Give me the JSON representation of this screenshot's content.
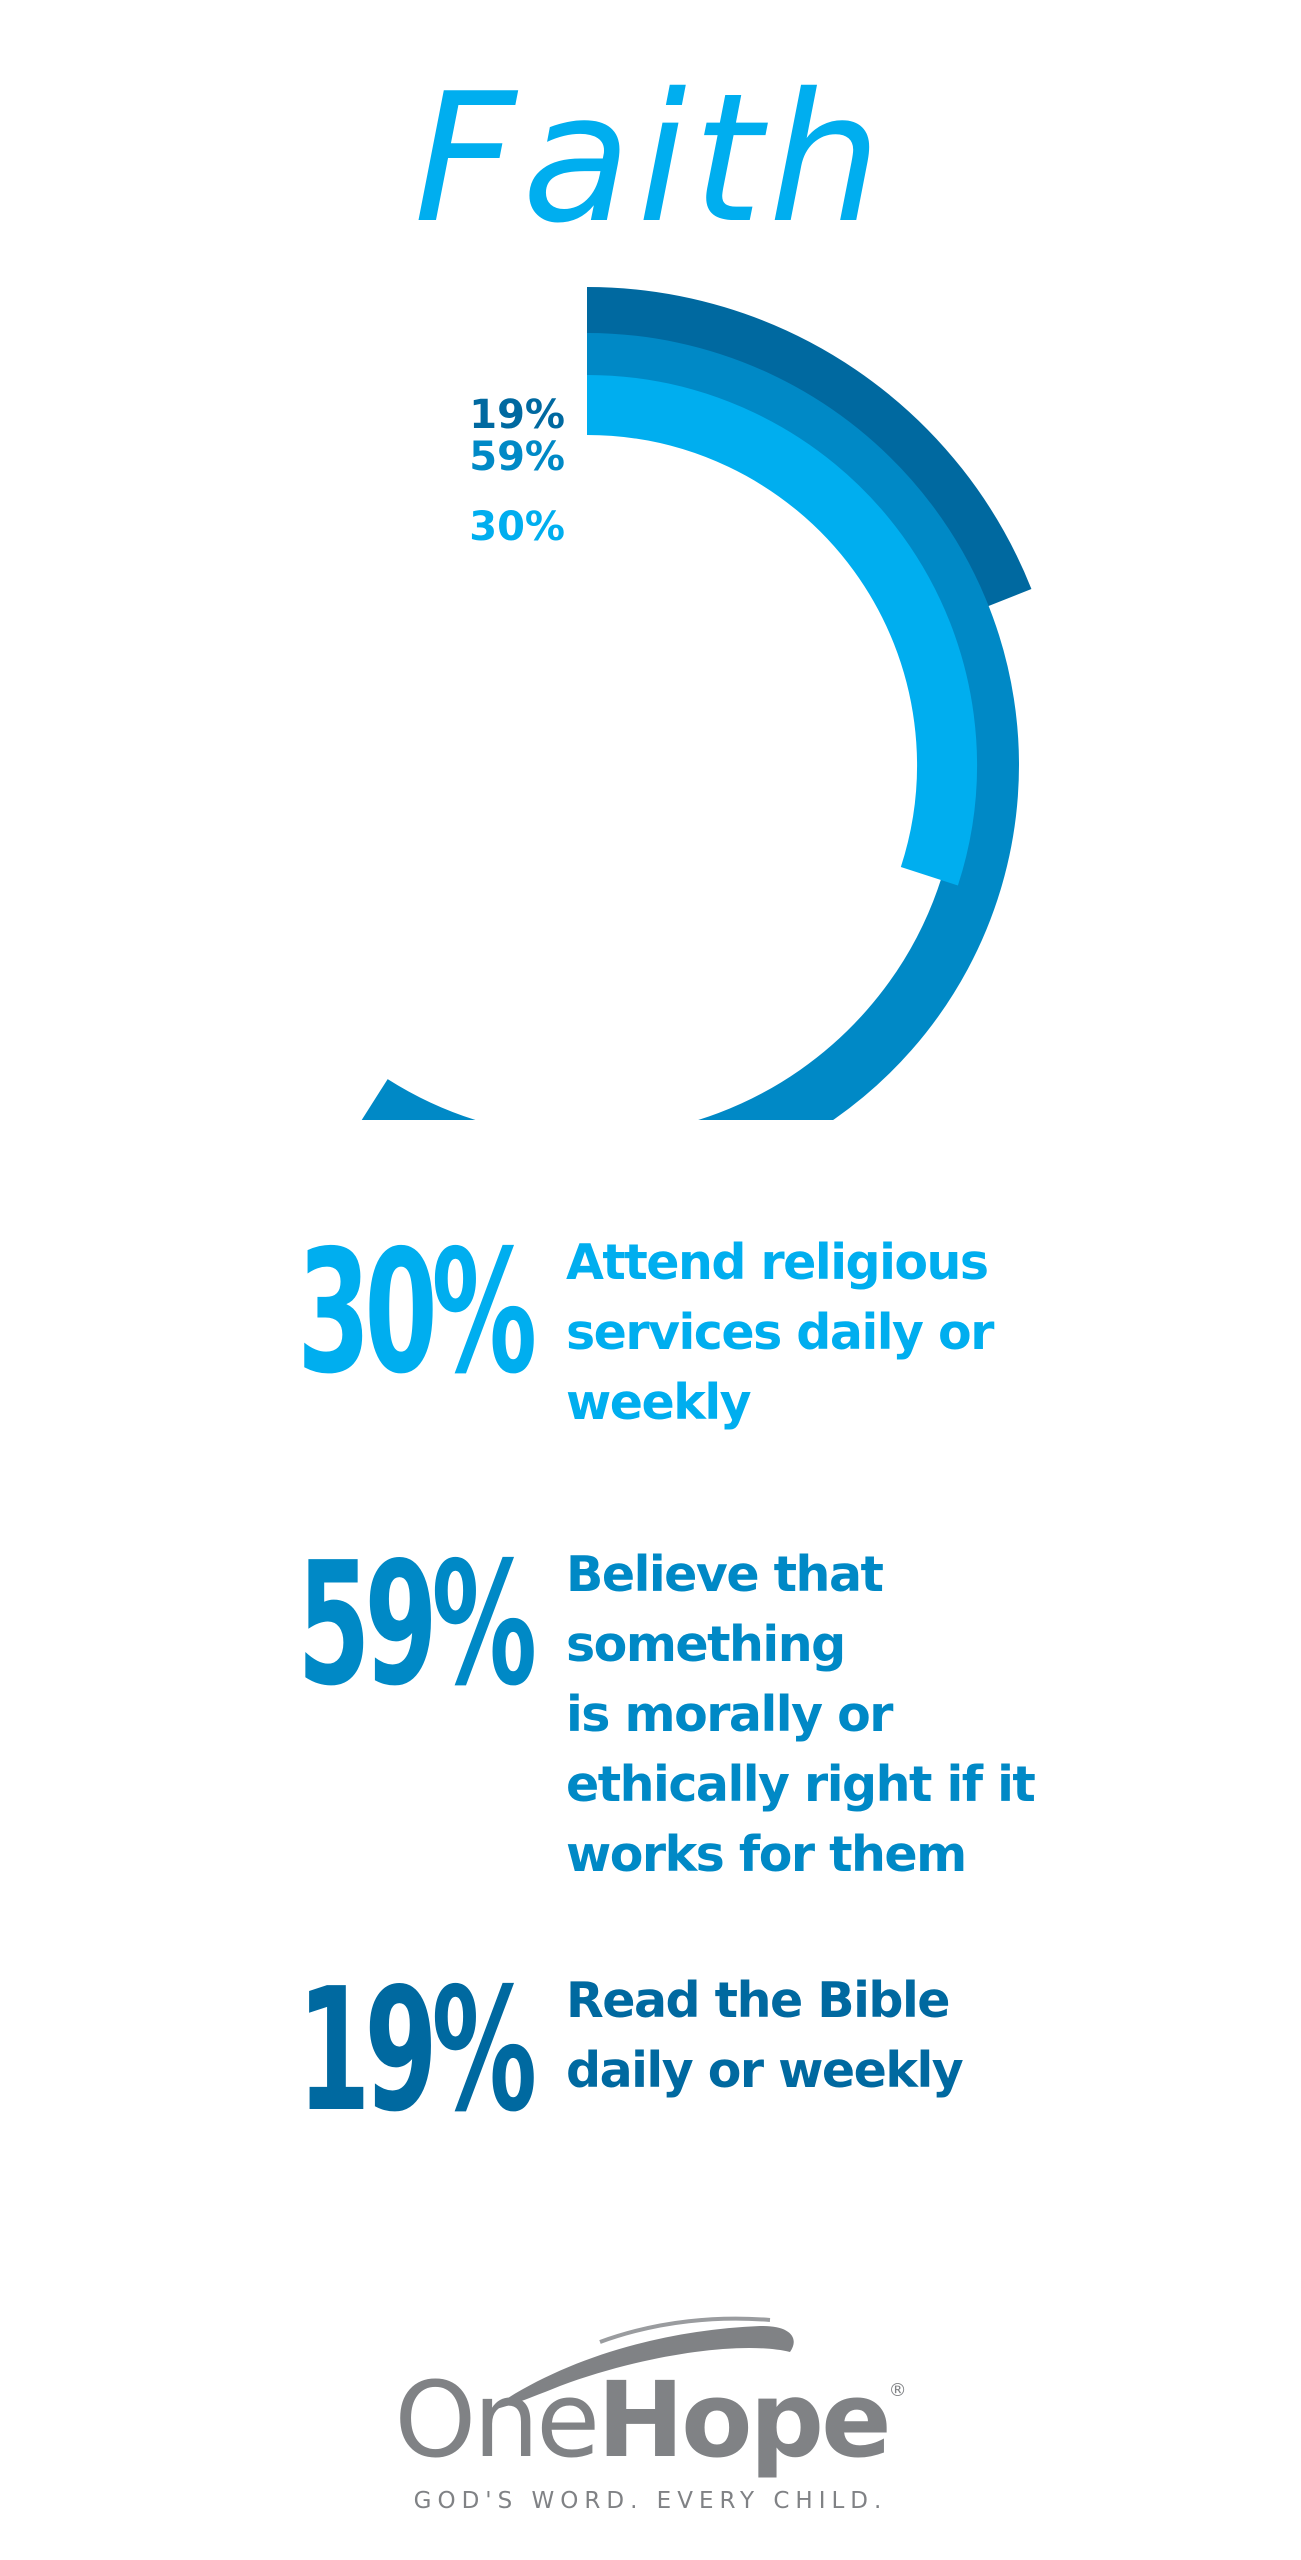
{
  "title": "Faith",
  "colors": {
    "light": "#00aeef",
    "mid": "#0089c6",
    "dark": "#0069a0",
    "logo_grey": "#808285"
  },
  "chart_data": {
    "type": "radial-bar",
    "series": [
      {
        "label": "19%",
        "value": 19,
        "color": "#0069a0"
      },
      {
        "label": "59%",
        "value": 59,
        "color": "#0089c6"
      },
      {
        "label": "30%",
        "value": 30,
        "color": "#00aeef"
      }
    ]
  },
  "stats": [
    {
      "value": "30%",
      "description": "Attend religious\nservices daily or\nweekly",
      "color": "#00aeef"
    },
    {
      "value": "59%",
      "description": "Believe that\nsomething\nis morally or\nethically right if it\nworks for them",
      "color": "#0089c6"
    },
    {
      "value": "19%",
      "description": "Read the Bible\ndaily or weekly",
      "color": "#0069a0"
    }
  ],
  "logo": {
    "word_one": "One",
    "word_hope": "Hope",
    "registered": "®",
    "tagline": "GOD'S WORD. EVERY CHILD."
  }
}
